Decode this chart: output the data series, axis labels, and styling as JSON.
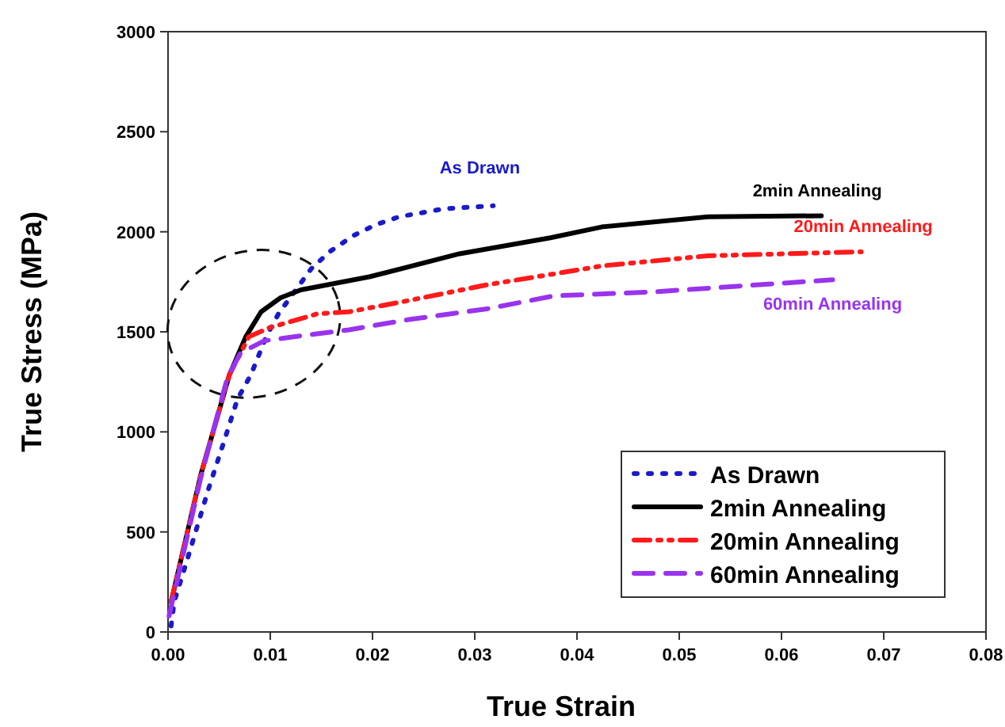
{
  "chart_data": {
    "type": "line",
    "xlabel": "True Strain",
    "ylabel": "True Stress (MPa)",
    "xlim": [
      0,
      0.08
    ],
    "ylim": [
      0,
      3000
    ],
    "xticks": [
      {
        "value": 0,
        "label": "0.00"
      },
      {
        "value": 0.01,
        "label": "0.01"
      },
      {
        "value": 0.02,
        "label": "0.02"
      },
      {
        "value": 0.03,
        "label": "0.03"
      },
      {
        "value": 0.04,
        "label": "0.04"
      },
      {
        "value": 0.05,
        "label": "0.05"
      },
      {
        "value": 0.06,
        "label": "0.06"
      },
      {
        "value": 0.07,
        "label": "0.07"
      },
      {
        "value": 0.08,
        "label": "0.08"
      }
    ],
    "yticks": [
      0,
      500,
      1000,
      1500,
      2000,
      2500,
      3000
    ],
    "grid": false,
    "legend": "bottom right",
    "marker": "none",
    "series": [
      {
        "name": "As Drawn",
        "color": "#1a1acc",
        "line_style": "dotted",
        "x": [
          0.0003,
          0.0006,
          0.0019,
          0.0039,
          0.0054,
          0.0068,
          0.0081,
          0.0096,
          0.0108,
          0.014,
          0.0158,
          0.0181,
          0.0203,
          0.0226,
          0.027,
          0.0318
        ],
        "values": [
          30,
          150,
          365,
          705,
          940,
          1165,
          1285,
          1475,
          1590,
          1815,
          1900,
          1980,
          2035,
          2075,
          2115,
          2130
        ]
      },
      {
        "name": "2min Annealing",
        "color": "#000000",
        "line_style": "solid",
        "x": [
          0.0003,
          0.0032,
          0.006,
          0.0076,
          0.0091,
          0.011,
          0.013,
          0.0197,
          0.0285,
          0.0374,
          0.0425,
          0.0528,
          0.0639
        ],
        "values": [
          150,
          785,
          1285,
          1475,
          1600,
          1670,
          1710,
          1775,
          1890,
          1970,
          2025,
          2075,
          2080
        ]
      },
      {
        "name": "20min Annealing",
        "color": "#ff1a1a",
        "line_style": "dashdot",
        "x": [
          0.0003,
          0.0032,
          0.006,
          0.0079,
          0.0099,
          0.0146,
          0.0177,
          0.0234,
          0.0312,
          0.0378,
          0.0425,
          0.0528,
          0.0678
        ],
        "values": [
          150,
          785,
          1285,
          1475,
          1520,
          1590,
          1600,
          1655,
          1735,
          1790,
          1830,
          1880,
          1900
        ]
      },
      {
        "name": "60min Annealing",
        "color": "#9933ee",
        "line_style": "dashed",
        "x": [
          0.0001,
          0.0032,
          0.0058,
          0.0071,
          0.0094,
          0.013,
          0.0177,
          0.0234,
          0.0312,
          0.0378,
          0.0476,
          0.065
        ],
        "values": [
          80,
          770,
          1270,
          1395,
          1455,
          1480,
          1510,
          1560,
          1615,
          1680,
          1700,
          1760
        ]
      }
    ]
  }
}
